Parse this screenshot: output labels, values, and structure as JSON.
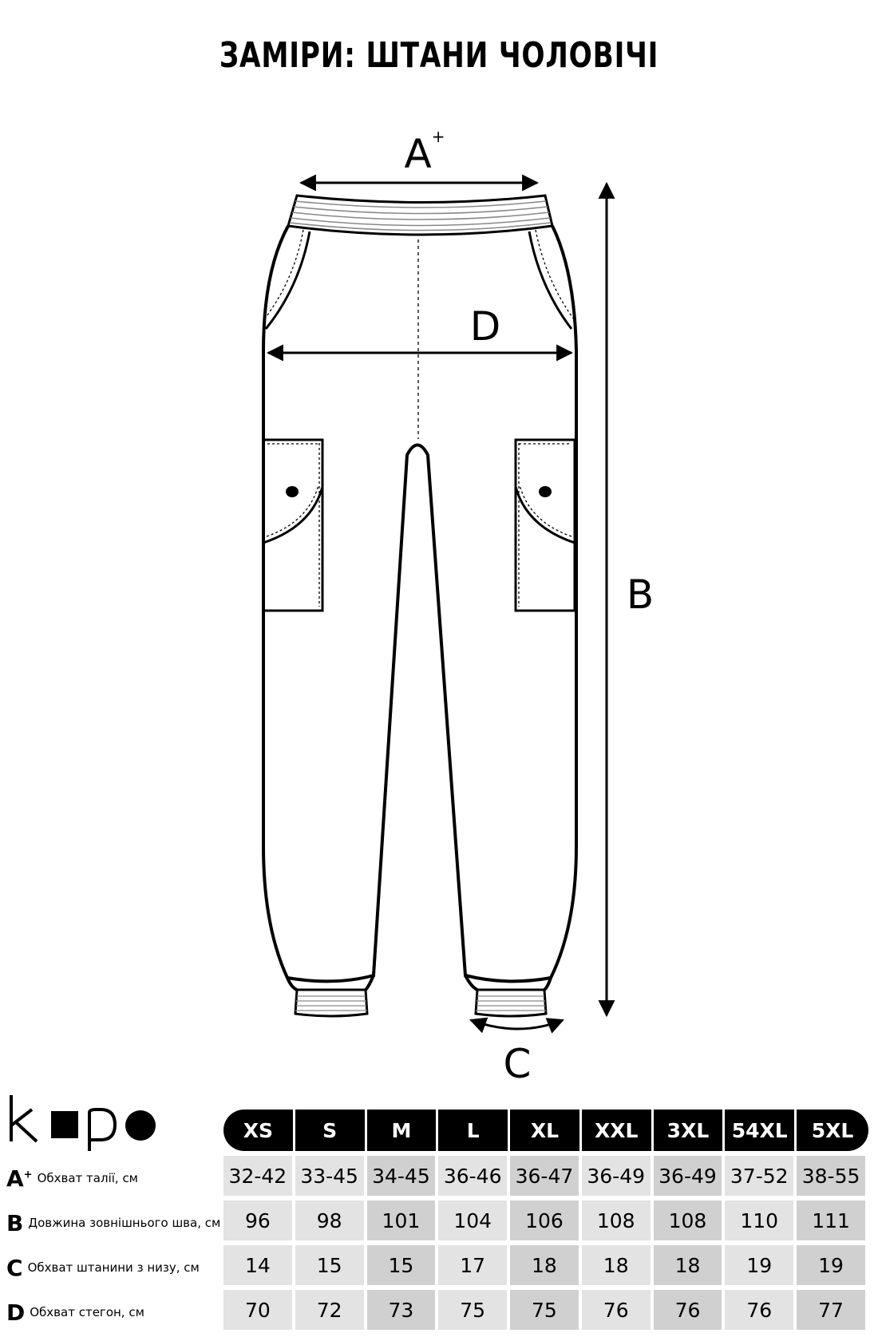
{
  "title": "ЗАМІРИ: ШТАНИ ЧОЛОВІЧІ",
  "diagram": {
    "label_a": "A",
    "label_a_sup": "+",
    "label_b": "B",
    "label_c": "C",
    "label_d": "D"
  },
  "logo": {
    "text": "kopo"
  },
  "table": {
    "sizes": [
      "XS",
      "S",
      "M",
      "L",
      "XL",
      "XXL",
      "3XL",
      "54XL",
      "5XL"
    ],
    "rows": [
      {
        "letter": "A",
        "sup": "+",
        "desc": "Обхват талії, см",
        "values": [
          "32-42",
          "33-45",
          "34-45",
          "36-46",
          "36-47",
          "36-49",
          "36-49",
          "37-52",
          "38-55"
        ]
      },
      {
        "letter": "B",
        "sup": "",
        "desc": "Довжина зовнішнього шва, см",
        "values": [
          "96",
          "98",
          "101",
          "104",
          "106",
          "108",
          "108",
          "110",
          "111"
        ]
      },
      {
        "letter": "C",
        "sup": "",
        "desc": "Обхват штанини з низу, см",
        "values": [
          "14",
          "15",
          "15",
          "17",
          "18",
          "18",
          "18",
          "19",
          "19"
        ]
      },
      {
        "letter": "D",
        "sup": "",
        "desc": "Обхват стегон, см",
        "values": [
          "70",
          "72",
          "73",
          "75",
          "75",
          "76",
          "76",
          "76",
          "77"
        ]
      }
    ]
  }
}
